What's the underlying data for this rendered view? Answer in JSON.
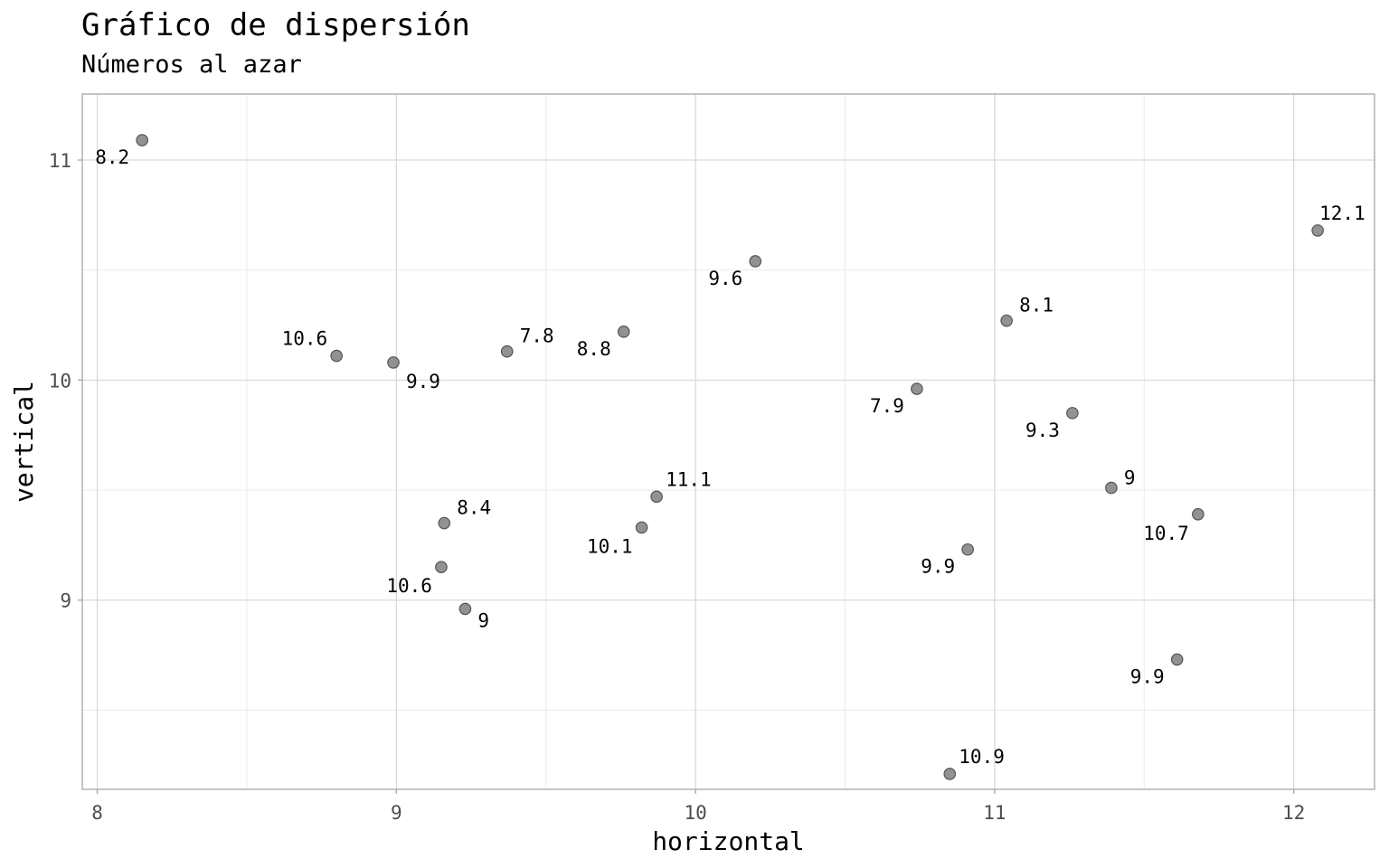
{
  "chart_data": {
    "type": "scatter",
    "title": "Gráfico de dispersión",
    "subtitle": "Números al azar",
    "xlabel": "horizontal",
    "ylabel": "vertical",
    "xlim": [
      7.95,
      12.27
    ],
    "ylim": [
      8.14,
      11.3
    ],
    "xticks": [
      8,
      9,
      10,
      11,
      12
    ],
    "yticks": [
      9,
      10,
      11
    ],
    "grid": true,
    "point_color": "#7f7f7f",
    "points": [
      {
        "x": 8.15,
        "y": 11.09,
        "label": "8.2"
      },
      {
        "x": 8.8,
        "y": 10.11,
        "label": "10.6"
      },
      {
        "x": 8.99,
        "y": 10.08,
        "label": "9.9"
      },
      {
        "x": 9.37,
        "y": 10.13,
        "label": "7.8"
      },
      {
        "x": 9.76,
        "y": 10.22,
        "label": "8.8"
      },
      {
        "x": 10.2,
        "y": 10.54,
        "label": "9.6"
      },
      {
        "x": 9.16,
        "y": 9.35,
        "label": "8.4"
      },
      {
        "x": 9.15,
        "y": 9.15,
        "label": "10.6"
      },
      {
        "x": 9.23,
        "y": 8.96,
        "label": "9"
      },
      {
        "x": 9.87,
        "y": 9.47,
        "label": "11.1"
      },
      {
        "x": 9.82,
        "y": 9.33,
        "label": "10.1"
      },
      {
        "x": 10.74,
        "y": 9.96,
        "label": "7.9"
      },
      {
        "x": 11.04,
        "y": 10.27,
        "label": "8.1"
      },
      {
        "x": 11.26,
        "y": 9.85,
        "label": "9.3"
      },
      {
        "x": 11.39,
        "y": 9.51,
        "label": "9"
      },
      {
        "x": 11.68,
        "y": 9.39,
        "label": "10.7"
      },
      {
        "x": 10.91,
        "y": 9.23,
        "label": "9.9"
      },
      {
        "x": 11.61,
        "y": 8.73,
        "label": "9.9"
      },
      {
        "x": 10.85,
        "y": 8.21,
        "label": "10.9"
      },
      {
        "x": 12.08,
        "y": 10.68,
        "label": "12.1"
      }
    ]
  }
}
